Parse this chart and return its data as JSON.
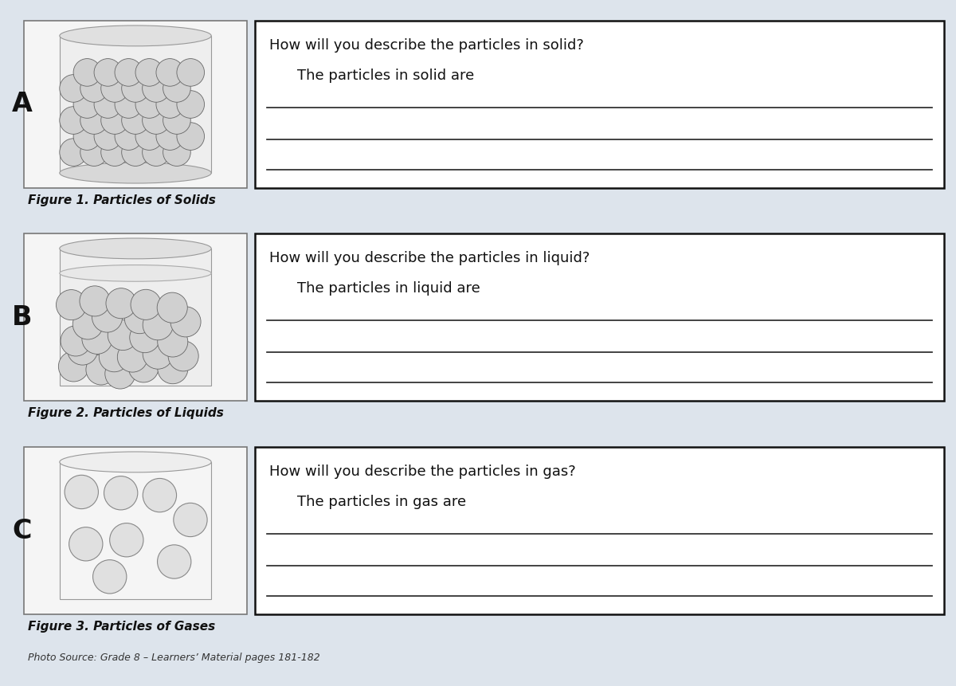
{
  "bg_color": "#dde4ec",
  "paper_color": "#ffffff",
  "border_color": "#111111",
  "text_color": "#111111",
  "labels": [
    "A",
    "B",
    "C"
  ],
  "questions": [
    "How will you describe the particles in solid?",
    "How will you describe the particles in liquid?",
    "How will you describe the particles in gas?"
  ],
  "subquestions": [
    "The particles in solid are",
    "The particles in liquid are",
    "The particles in gas are"
  ],
  "captions": [
    "Figure 1. Particles of Solids",
    "Figure 2. Particles of Liquids",
    "Figure 3. Particles of Gases"
  ],
  "photo_source": "Photo Source: Grade 8 – Learners’ Material pages 181-182",
  "line_color": "#222222",
  "caption_color": "#111111"
}
